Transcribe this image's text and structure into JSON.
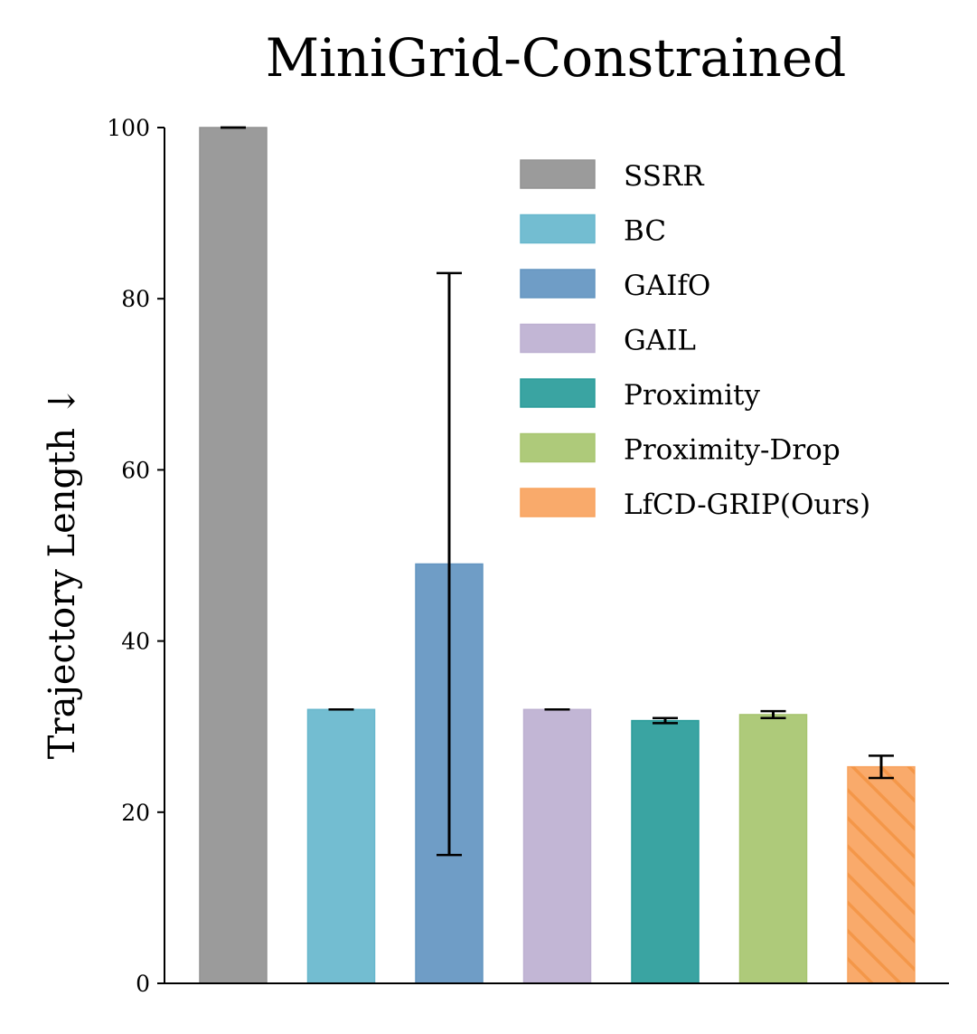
{
  "chart_data": {
    "type": "bar",
    "title": "MiniGrid-Constrained",
    "ylabel": "Trajectory Length ↓",
    "xlabel": "",
    "ylim": [
      0,
      100
    ],
    "yticks": [
      0,
      20,
      40,
      60,
      80,
      100
    ],
    "grid": false,
    "legend_position": "top-right",
    "series": [
      {
        "name": "SSRR",
        "value": 100.0,
        "err_low": 100.0,
        "err_high": 100.0,
        "color": "#929292",
        "hatch": false
      },
      {
        "name": "BC",
        "value": 32.0,
        "err_low": 32.0,
        "err_high": 32.0,
        "color": "#67b7cd",
        "hatch": false
      },
      {
        "name": "GAIfO",
        "value": 49.0,
        "err_low": 15.0,
        "err_high": 83.0,
        "color": "#6395c1",
        "hatch": false
      },
      {
        "name": "GAIL",
        "value": 32.0,
        "err_low": 32.0,
        "err_high": 32.0,
        "color": "#bdb0d1",
        "hatch": false
      },
      {
        "name": "Proximity",
        "value": 30.7,
        "err_low": 30.4,
        "err_high": 31.0,
        "color": "#299c9a",
        "hatch": false
      },
      {
        "name": "Proximity-Drop",
        "value": 31.4,
        "err_low": 31.0,
        "err_high": 31.8,
        "color": "#a7c56f",
        "hatch": false
      },
      {
        "name": "LfCD-GRIP(Ours)",
        "value": 25.3,
        "err_low": 24.0,
        "err_high": 26.6,
        "color": "#f8a35e",
        "hatch": true
      }
    ]
  }
}
